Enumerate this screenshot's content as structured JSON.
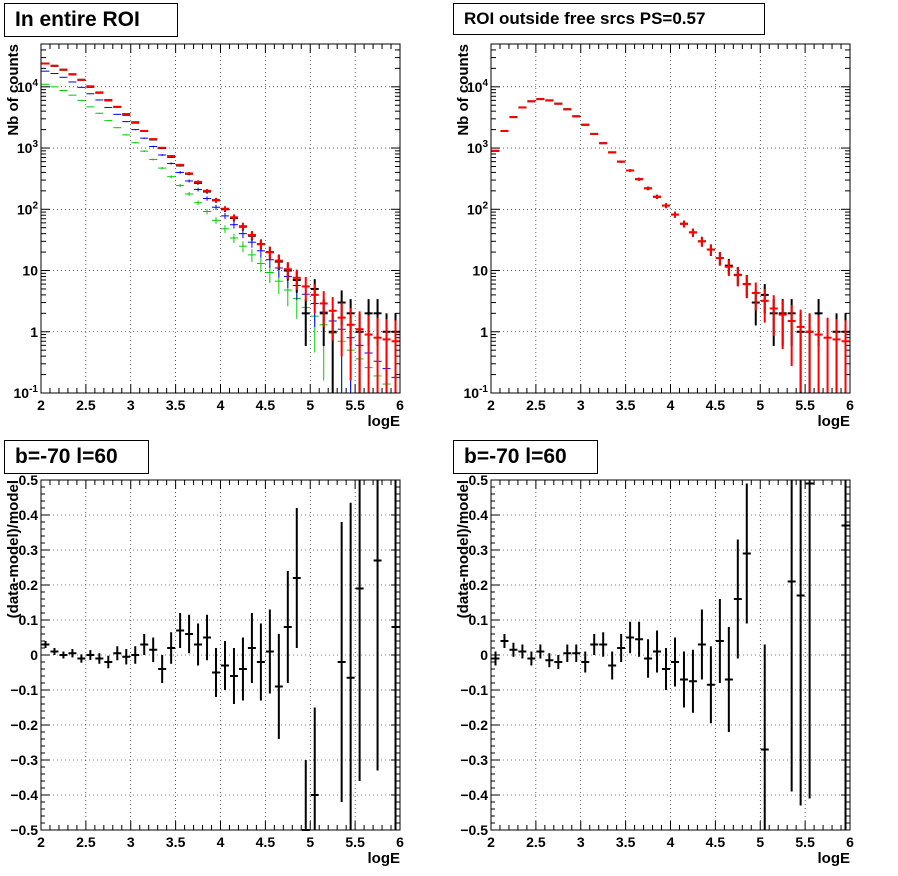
{
  "panels": [
    {
      "id": "p1",
      "title": "In entire ROI",
      "xlabel": "logE",
      "ylabel": "Nb of counts"
    },
    {
      "id": "p2",
      "title": "ROI outside free srcs PS=0.57",
      "xlabel": "logE",
      "ylabel": "Nb of counts"
    },
    {
      "id": "p3",
      "title": "b=-70 l=60",
      "xlabel": "logE",
      "ylabel": "(data-model)/model"
    },
    {
      "id": "p4",
      "title": "b=-70 l=60",
      "xlabel": "logE",
      "ylabel": "(data-model)/model"
    }
  ],
  "colors": {
    "data": "#000000",
    "model": "#ff0000",
    "blue": "#0000ff",
    "green": "#00cc00"
  },
  "chart_data": [
    {
      "type": "line",
      "scale": "log",
      "title": "In entire ROI",
      "xlabel": "logE",
      "ylabel": "Nb of counts",
      "xlim": [
        2,
        6
      ],
      "ylim": [
        0.1,
        50000
      ],
      "xticks": [
        2,
        2.5,
        3,
        3.5,
        4,
        4.5,
        5,
        5.5,
        6
      ],
      "yticks": [
        {
          "v": 0.1,
          "label": "10^-1"
        },
        {
          "v": 1,
          "label": "1"
        },
        {
          "v": 10,
          "label": "10"
        },
        {
          "v": 100,
          "label": "10^2"
        },
        {
          "v": 1000,
          "label": "10^3"
        },
        {
          "v": 10000,
          "label": "10^4"
        }
      ],
      "grid": true,
      "x": [
        2.05,
        2.15,
        2.25,
        2.35,
        2.45,
        2.55,
        2.65,
        2.75,
        2.85,
        2.95,
        3.05,
        3.15,
        3.25,
        3.35,
        3.45,
        3.55,
        3.65,
        3.75,
        3.85,
        3.95,
        4.05,
        4.15,
        4.25,
        4.35,
        4.45,
        4.55,
        4.65,
        4.75,
        4.85,
        4.95,
        5.05,
        5.15,
        5.25,
        5.35,
        5.45,
        5.55,
        5.65,
        5.75,
        5.85,
        5.95
      ],
      "series": [
        {
          "color": "black",
          "errors": true,
          "values": [
            24000,
            22000,
            19000,
            16000,
            13000,
            10000,
            8000,
            6000,
            4700,
            3500,
            2600,
            1900,
            1380,
            1000,
            720,
            520,
            380,
            270,
            195,
            140,
            100,
            72,
            52,
            37,
            27,
            20,
            14,
            10,
            7,
            2,
            5,
            2,
            1,
            3,
            2,
            1,
            2,
            2,
            1,
            1
          ]
        },
        {
          "color": "red",
          "errors": true,
          "values": [
            24000,
            22000,
            19000,
            16000,
            13000,
            10200,
            8100,
            6100,
            4700,
            3600,
            2650,
            1900,
            1400,
            1010,
            740,
            530,
            385,
            280,
            200,
            142,
            102,
            74,
            53,
            38,
            27,
            20,
            14.5,
            10.5,
            7.6,
            5.5,
            4,
            2.9,
            2.2,
            1.7,
            1.3,
            1.1,
            0.9,
            0.8,
            0.75,
            0.7
          ]
        },
        {
          "color": "blue",
          "errors": true,
          "values": [
            18000,
            16500,
            14300,
            12000,
            9800,
            7700,
            6100,
            4600,
            3550,
            2700,
            2000,
            1450,
            1060,
            770,
            560,
            400,
            290,
            210,
            150,
            108,
            78,
            56,
            40,
            29,
            21,
            15,
            11,
            8,
            5.7,
            4.1,
            2.9,
            2.1,
            1.5,
            1.1,
            0.8,
            0.6,
            0.45,
            0.33,
            0.25,
            0.18
          ]
        },
        {
          "color": "green",
          "errors": true,
          "values": [
            11000,
            10000,
            8700,
            7300,
            6000,
            4700,
            3700,
            2800,
            2150,
            1640,
            1220,
            890,
            650,
            470,
            340,
            245,
            178,
            128,
            92,
            66,
            48,
            34,
            25,
            18,
            13,
            9.3,
            6.7,
            4.8,
            3.5,
            2.5,
            1.8,
            1.3,
            0.95,
            0.7,
            0.5,
            0.36,
            0.26,
            0.19,
            0.14,
            0.1
          ]
        }
      ]
    },
    {
      "type": "line",
      "scale": "log",
      "title": "ROI outside free srcs PS=0.57",
      "xlabel": "logE",
      "ylabel": "Nb of counts",
      "xlim": [
        2,
        6
      ],
      "ylim": [
        0.1,
        50000
      ],
      "xticks": [
        2,
        2.5,
        3,
        3.5,
        4,
        4.5,
        5,
        5.5,
        6
      ],
      "yticks": [
        {
          "v": 0.1,
          "label": "10^-1"
        },
        {
          "v": 1,
          "label": "1"
        },
        {
          "v": 10,
          "label": "10"
        },
        {
          "v": 100,
          "label": "10^2"
        },
        {
          "v": 1000,
          "label": "10^3"
        },
        {
          "v": 10000,
          "label": "10^4"
        }
      ],
      "grid": true,
      "x": [
        2.05,
        2.15,
        2.25,
        2.35,
        2.45,
        2.55,
        2.65,
        2.75,
        2.85,
        2.95,
        3.05,
        3.15,
        3.25,
        3.35,
        3.45,
        3.55,
        3.65,
        3.75,
        3.85,
        3.95,
        4.05,
        4.15,
        4.25,
        4.35,
        4.45,
        4.55,
        4.65,
        4.75,
        4.85,
        4.95,
        5.05,
        5.15,
        5.25,
        5.35,
        5.45,
        5.55,
        5.65,
        5.75,
        5.85,
        5.95
      ],
      "series": [
        {
          "color": "black",
          "errors": true,
          "values": [
            900,
            1900,
            3200,
            4600,
            5800,
            6300,
            6000,
            5300,
            4300,
            3300,
            2400,
            1700,
            1200,
            850,
            600,
            430,
            310,
            220,
            160,
            115,
            82,
            58,
            42,
            30,
            22,
            16,
            12,
            8.5,
            6,
            3,
            4,
            2,
            2,
            2,
            1,
            1,
            2,
            0,
            1,
            1
          ]
        },
        {
          "color": "red",
          "errors": true,
          "values": [
            900,
            1900,
            3200,
            4600,
            5800,
            6300,
            6000,
            5300,
            4300,
            3300,
            2400,
            1700,
            1200,
            850,
            600,
            430,
            310,
            220,
            160,
            115,
            82,
            58,
            42,
            30,
            22,
            16,
            11.5,
            8.4,
            6,
            4.3,
            3.2,
            2.4,
            1.9,
            1.5,
            1.2,
            1,
            0.9,
            0.8,
            0.75,
            0.7
          ]
        }
      ]
    },
    {
      "type": "scatter",
      "title": "b=-70 l=60",
      "xlabel": "logE",
      "ylabel": "(data-model)/model",
      "xlim": [
        2,
        6
      ],
      "ylim": [
        -0.5,
        0.5
      ],
      "xticks": [
        2,
        2.5,
        3,
        3.5,
        4,
        4.5,
        5,
        5.5,
        6
      ],
      "yticks": [
        -0.5,
        -0.4,
        -0.3,
        -0.2,
        -0.1,
        0,
        0.1,
        0.2,
        0.3,
        0.4,
        0.5
      ],
      "grid": true,
      "x": [
        2.05,
        2.15,
        2.25,
        2.35,
        2.45,
        2.55,
        2.65,
        2.75,
        2.85,
        2.95,
        3.05,
        3.15,
        3.25,
        3.35,
        3.45,
        3.55,
        3.65,
        3.75,
        3.85,
        3.95,
        4.05,
        4.15,
        4.25,
        4.35,
        4.45,
        4.55,
        4.65,
        4.75,
        4.85,
        4.95,
        5.05,
        5.35,
        5.45,
        5.55,
        5.75,
        5.95
      ],
      "values": [
        0.03,
        0.01,
        0.0,
        0.005,
        -0.01,
        0.0,
        -0.01,
        -0.02,
        0.005,
        -0.005,
        0.0,
        0.03,
        0.015,
        -0.04,
        0.02,
        0.07,
        0.06,
        0.03,
        0.05,
        -0.05,
        -0.03,
        -0.06,
        -0.04,
        0.02,
        -0.02,
        0.01,
        -0.09,
        0.08,
        0.22,
        -0.5,
        -0.4,
        -0.02,
        -0.065,
        0.19,
        0.27,
        0.08
      ],
      "errors": [
        0.01,
        0.01,
        0.01,
        0.012,
        0.012,
        0.014,
        0.015,
        0.018,
        0.02,
        0.022,
        0.025,
        0.03,
        0.035,
        0.04,
        0.045,
        0.05,
        0.055,
        0.06,
        0.065,
        0.07,
        0.07,
        0.08,
        0.09,
        0.1,
        0.11,
        0.12,
        0.15,
        0.16,
        0.2,
        0.2,
        0.25,
        0.4,
        0.5,
        0.55,
        0.6,
        0.7
      ]
    },
    {
      "type": "scatter",
      "title": "b=-70 l=60",
      "xlabel": "logE",
      "ylabel": "(data-model)/model",
      "xlim": [
        2,
        6
      ],
      "ylim": [
        -0.5,
        0.5
      ],
      "xticks": [
        2,
        2.5,
        3,
        3.5,
        4,
        4.5,
        5,
        5.5,
        6
      ],
      "yticks": [
        -0.5,
        -0.4,
        -0.3,
        -0.2,
        -0.1,
        0,
        0.1,
        0.2,
        0.3,
        0.4,
        0.5
      ],
      "grid": true,
      "x": [
        2.05,
        2.15,
        2.25,
        2.35,
        2.45,
        2.55,
        2.65,
        2.75,
        2.85,
        2.95,
        3.05,
        3.15,
        3.25,
        3.35,
        3.45,
        3.55,
        3.65,
        3.75,
        3.85,
        3.95,
        4.05,
        4.15,
        4.25,
        4.35,
        4.45,
        4.55,
        4.65,
        4.75,
        4.85,
        5.05,
        5.35,
        5.45,
        5.55,
        5.95
      ],
      "values": [
        -0.01,
        0.04,
        0.015,
        0.01,
        -0.01,
        0.01,
        -0.015,
        -0.02,
        0.005,
        0.005,
        -0.02,
        0.03,
        0.03,
        -0.03,
        0.02,
        0.05,
        0.045,
        -0.01,
        0.01,
        -0.04,
        -0.02,
        -0.07,
        -0.075,
        0.03,
        -0.085,
        0.04,
        -0.07,
        0.16,
        0.29,
        -0.27,
        0.21,
        0.17,
        0.49,
        0.37
      ],
      "errors": [
        0.02,
        0.02,
        0.02,
        0.02,
        0.02,
        0.02,
        0.02,
        0.02,
        0.025,
        0.025,
        0.03,
        0.03,
        0.035,
        0.04,
        0.04,
        0.045,
        0.05,
        0.055,
        0.06,
        0.06,
        0.07,
        0.08,
        0.09,
        0.1,
        0.11,
        0.12,
        0.15,
        0.17,
        0.2,
        0.3,
        0.6,
        0.6,
        0.9,
        0.9
      ]
    }
  ]
}
